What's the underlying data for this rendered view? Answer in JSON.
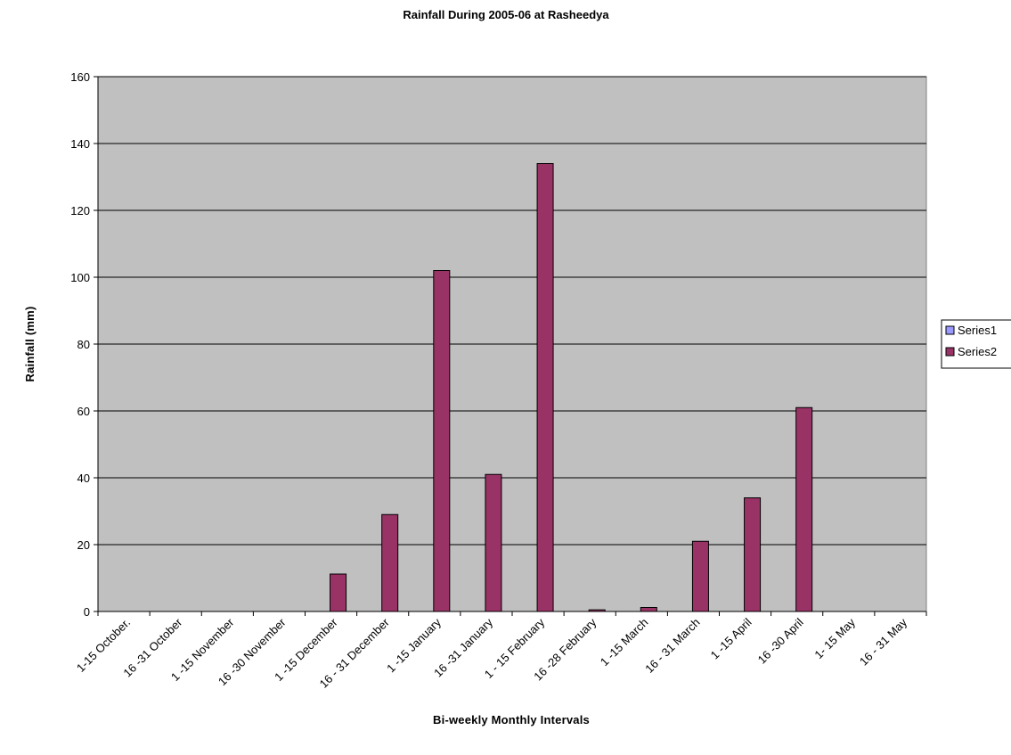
{
  "chart_data": {
    "type": "bar",
    "title": "Rainfall During 2005-06 at Rasheedya",
    "xlabel": "Bi-weekly Monthly Intervals",
    "ylabel": "Rainfall (mm)",
    "ylim": [
      0,
      160
    ],
    "yticks": [
      0,
      20,
      40,
      60,
      80,
      100,
      120,
      140,
      160
    ],
    "grid": true,
    "plot_background": "#c0c0c0",
    "legend": {
      "placement": "right"
    },
    "categories": [
      "1-15 October.",
      "16 -31 October",
      "1 -15 November",
      "16 -30 November",
      "1 -15 December",
      "16 - 31 December",
      "1 -15 January",
      "16 -31 January",
      "1 - 15 February",
      "16 -28 February",
      "1 -15 March",
      "16 - 31 March",
      "1 -15 April",
      "16 -30 April",
      "1- 15 May",
      "16 - 31 May"
    ],
    "series": [
      {
        "name": "Series1",
        "color": "#9999ff",
        "values": [
          0,
          0,
          0,
          0,
          0,
          0,
          0,
          0,
          0,
          0,
          0,
          0,
          0,
          0,
          0,
          0
        ]
      },
      {
        "name": "Series2",
        "color": "#993366",
        "values": [
          0,
          0,
          0,
          0,
          11.2,
          29,
          102,
          41,
          134,
          0.5,
          1.2,
          21,
          34,
          61,
          0,
          0
        ]
      }
    ]
  }
}
